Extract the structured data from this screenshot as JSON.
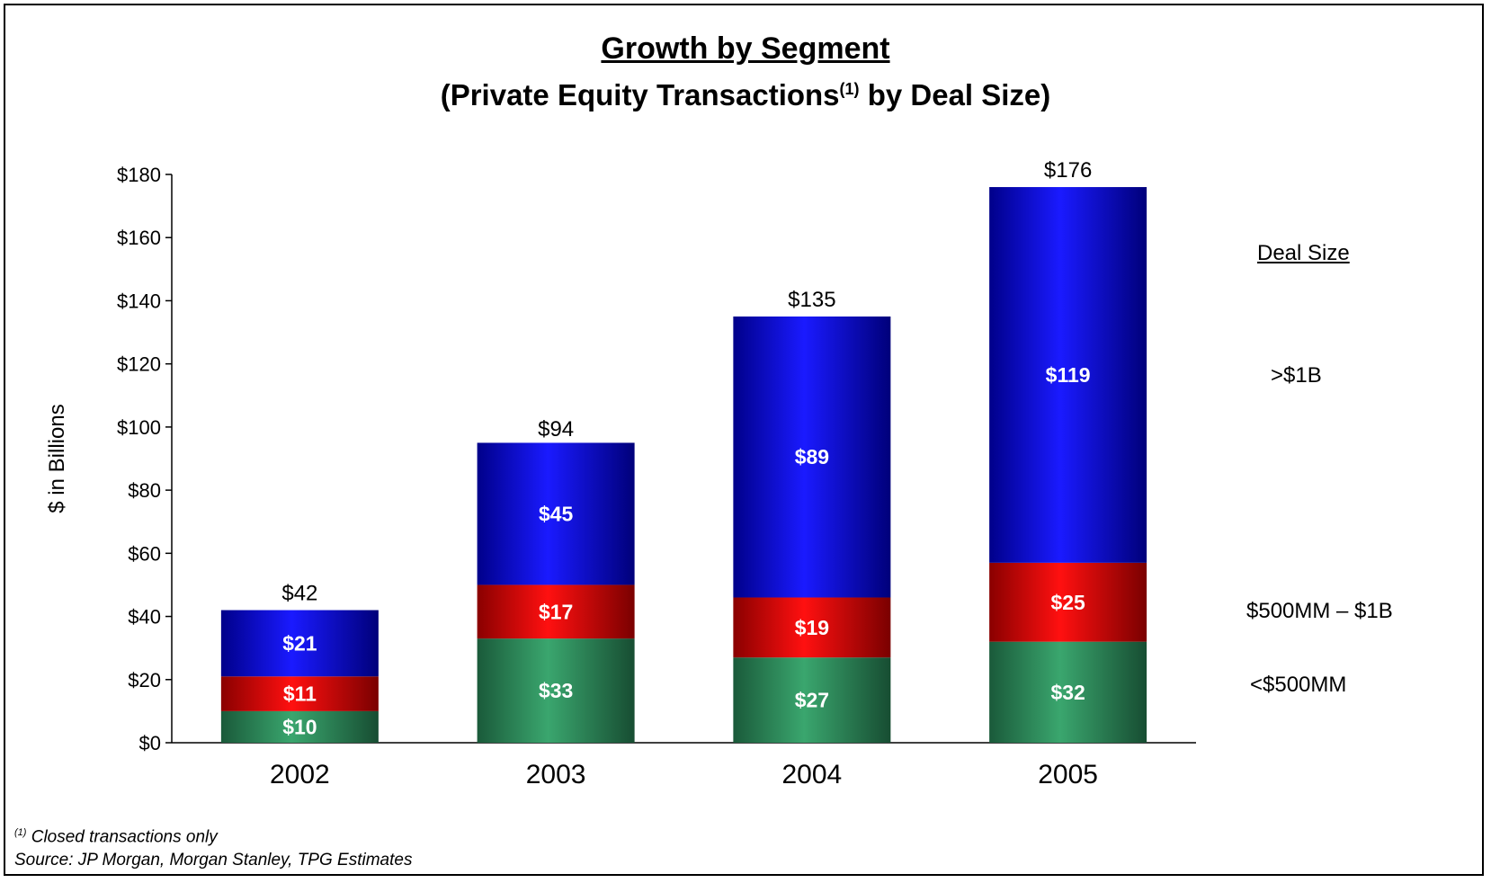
{
  "title": {
    "line1": "Growth by Segment",
    "line2_pre": "(Private Equity Transactions",
    "line2_sup": "(1)",
    "line2_post": " by Deal Size)"
  },
  "legend": {
    "title": "Deal Size",
    "items": [
      {
        "label": ">$1B",
        "color": "#1010c8"
      },
      {
        "label": "$500MM – $1B",
        "color": "#d01010"
      },
      {
        "label": "<$500MM",
        "color": "#2e8b57"
      }
    ]
  },
  "footnotes": {
    "note_sup": "(1)",
    "note_text": " Closed transactions only",
    "source": "Source: JP Morgan, Morgan Stanley, TPG Estimates"
  },
  "chart_data": {
    "type": "bar",
    "stacked": true,
    "categories": [
      "2002",
      "2003",
      "2004",
      "2005"
    ],
    "series": [
      {
        "name": "<$500MM",
        "values": [
          10,
          33,
          27,
          32
        ],
        "labels": [
          "$10",
          "$33",
          "$27",
          "$32"
        ]
      },
      {
        "name": "$500MM – $1B",
        "values": [
          11,
          17,
          19,
          25
        ],
        "labels": [
          "$11",
          "$17",
          "$19",
          "$25"
        ]
      },
      {
        "name": ">$1B",
        "values": [
          21,
          45,
          89,
          119
        ],
        "labels": [
          "$21",
          "$45",
          "$89",
          "$119"
        ]
      }
    ],
    "totals": [
      42,
      94,
      135,
      176
    ],
    "total_labels": [
      "$42",
      "$94",
      "$135",
      "$176"
    ],
    "ylabel": "$ in Billions",
    "ylim": [
      0,
      180
    ],
    "yticks": [
      0,
      20,
      40,
      60,
      80,
      100,
      120,
      140,
      160,
      180
    ],
    "ytick_labels": [
      "$0",
      "$20",
      "$40",
      "$60",
      "$80",
      "$100",
      "$120",
      "$140",
      "$160",
      "$180"
    ],
    "grid": false,
    "legend_position": "right"
  }
}
